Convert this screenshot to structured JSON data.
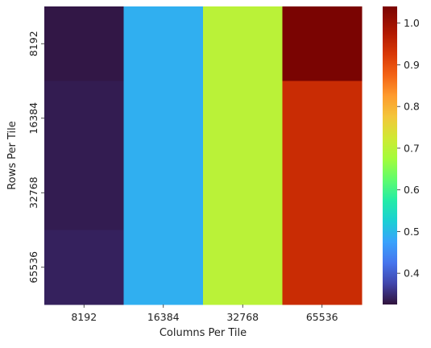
{
  "chart_data": {
    "type": "heatmap",
    "title": "",
    "xlabel": "Columns Per Tile",
    "ylabel": "Rows Per Tile",
    "x_categories": [
      "8192",
      "16384",
      "32768",
      "65536"
    ],
    "y_categories": [
      "8192",
      "16384",
      "32768",
      "65536"
    ],
    "values": [
      [
        0.33,
        0.49,
        0.7,
        1.04
      ],
      [
        0.335,
        0.49,
        0.7,
        0.945
      ],
      [
        0.335,
        0.49,
        0.7,
        0.945
      ],
      [
        0.34,
        0.49,
        0.7,
        0.945
      ]
    ],
    "colorbar": {
      "colormap": "turbo",
      "range": [
        0.325,
        1.04
      ],
      "ticks": [
        "0.4",
        "0.5",
        "0.6",
        "0.7",
        "0.8",
        "0.9",
        "1.0"
      ],
      "tick_values": [
        0.4,
        0.5,
        0.6,
        0.7,
        0.8,
        0.9,
        1.0
      ]
    },
    "grid": false,
    "legend": "colorbar-right"
  }
}
